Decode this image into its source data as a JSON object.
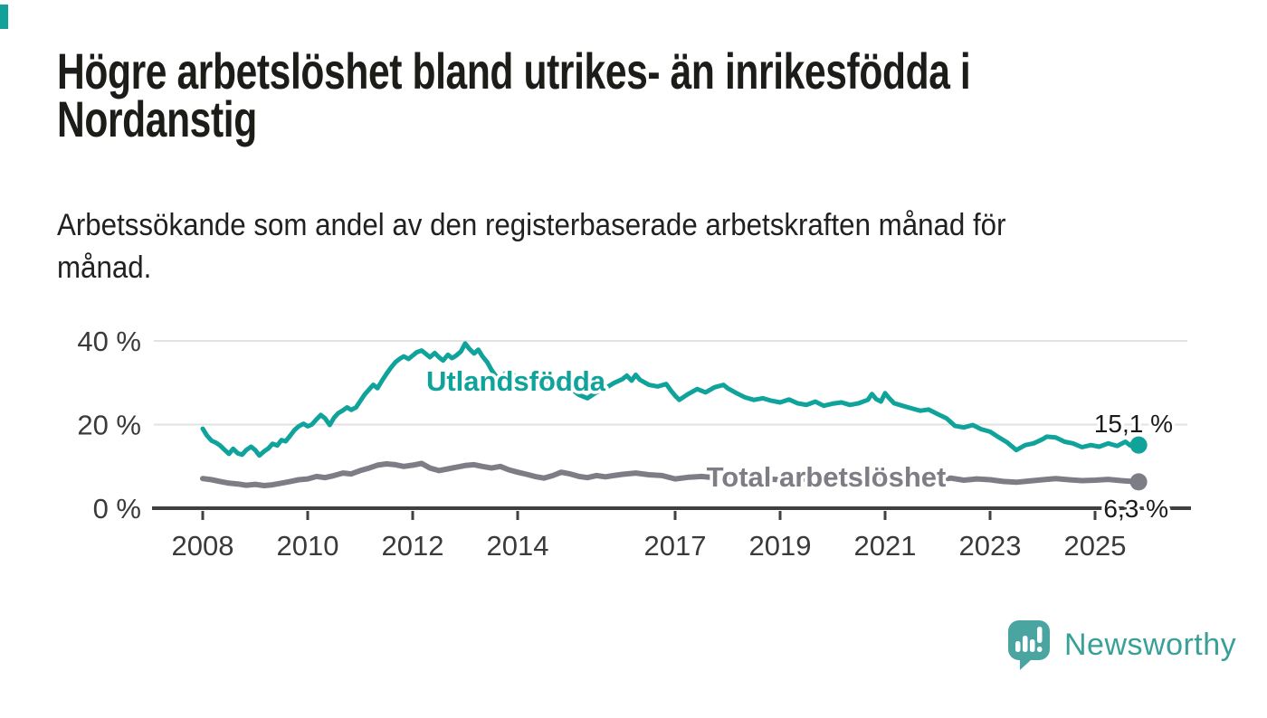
{
  "header": {
    "title": "Högre arbetslöshet bland utrikes- än inrikesfödda i\nNordanstig",
    "subtitle": "Arbetssökande som andel av den registerbaserade arbetskraften månad för\nmånad."
  },
  "footer": {
    "brand": "Newsworthy"
  },
  "colors": {
    "accent": "#12a19a",
    "utlandsfodda_line": "#10a39b",
    "total_line": "#7d7d85",
    "value_label": "#1a1a1a",
    "axis": "#404040",
    "tick_label": "#3a3a3a",
    "gridline": "#e2e2e2",
    "logo_icon": "#4aa5a0",
    "logo_text": "#38a099",
    "title_text": "#1c1c18"
  },
  "chart_data": {
    "type": "line",
    "title": "Högre arbetslöshet bland utrikes- än inrikesfödda i Nordanstig",
    "subtitle": "Arbetssökande som andel av den registerbaserade arbetskraften månad för månad.",
    "grid": "horizontal-only",
    "legend_position": "inline-labels-on-lines",
    "x_axis": {
      "ticks": [
        2008,
        2010,
        2012,
        2014,
        2017,
        2019,
        2021,
        2023,
        2025
      ],
      "tick_labels": [
        "2008",
        "2010",
        "2012",
        "2014",
        "2017",
        "2019",
        "2021",
        "2023",
        "2025"
      ],
      "range": [
        2007.9,
        2026.8
      ]
    },
    "y_axis": {
      "unit": "%",
      "ticks": [
        0,
        20,
        40
      ],
      "tick_labels": [
        "0 %",
        "20 %",
        "40 %"
      ],
      "gridlines": [
        20,
        40
      ],
      "range": [
        0,
        44
      ]
    },
    "series": [
      {
        "id": "utlandsfodda",
        "name": "Utlandsfödda",
        "color": "#10a39b",
        "end_label": "15,1 %",
        "end_value": 15.1,
        "points": [
          [
            2008.0,
            19.0
          ],
          [
            2008.08,
            17.4
          ],
          [
            2008.17,
            16.1
          ],
          [
            2008.25,
            15.7
          ],
          [
            2008.33,
            15.0
          ],
          [
            2008.42,
            13.9
          ],
          [
            2008.5,
            13.0
          ],
          [
            2008.58,
            14.2
          ],
          [
            2008.67,
            13.1
          ],
          [
            2008.75,
            12.8
          ],
          [
            2008.83,
            13.9
          ],
          [
            2008.92,
            14.7
          ],
          [
            2009.0,
            13.9
          ],
          [
            2009.08,
            12.6
          ],
          [
            2009.17,
            13.6
          ],
          [
            2009.25,
            14.3
          ],
          [
            2009.33,
            15.4
          ],
          [
            2009.42,
            15.0
          ],
          [
            2009.5,
            16.3
          ],
          [
            2009.58,
            16.0
          ],
          [
            2009.67,
            17.4
          ],
          [
            2009.75,
            18.7
          ],
          [
            2009.83,
            19.6
          ],
          [
            2009.92,
            20.2
          ],
          [
            2010.0,
            19.6
          ],
          [
            2010.08,
            20.0
          ],
          [
            2010.17,
            21.3
          ],
          [
            2010.25,
            22.3
          ],
          [
            2010.33,
            21.5
          ],
          [
            2010.42,
            19.9
          ],
          [
            2010.5,
            21.6
          ],
          [
            2010.58,
            22.7
          ],
          [
            2010.67,
            23.4
          ],
          [
            2010.75,
            24.1
          ],
          [
            2010.83,
            23.5
          ],
          [
            2010.92,
            24.1
          ],
          [
            2011.0,
            25.6
          ],
          [
            2011.08,
            27.1
          ],
          [
            2011.17,
            28.4
          ],
          [
            2011.25,
            29.5
          ],
          [
            2011.33,
            28.7
          ],
          [
            2011.42,
            30.6
          ],
          [
            2011.5,
            32.1
          ],
          [
            2011.58,
            33.5
          ],
          [
            2011.67,
            34.9
          ],
          [
            2011.75,
            35.7
          ],
          [
            2011.83,
            36.3
          ],
          [
            2011.92,
            35.7
          ],
          [
            2012.0,
            36.5
          ],
          [
            2012.08,
            37.3
          ],
          [
            2012.17,
            37.7
          ],
          [
            2012.25,
            36.9
          ],
          [
            2012.33,
            36.1
          ],
          [
            2012.42,
            37.1
          ],
          [
            2012.5,
            36.1
          ],
          [
            2012.58,
            35.3
          ],
          [
            2012.67,
            36.7
          ],
          [
            2012.75,
            35.9
          ],
          [
            2012.83,
            36.5
          ],
          [
            2012.92,
            37.5
          ],
          [
            2013.0,
            39.4
          ],
          [
            2013.08,
            38.1
          ],
          [
            2013.17,
            37.0
          ],
          [
            2013.25,
            37.9
          ],
          [
            2013.33,
            36.3
          ],
          [
            2013.42,
            34.9
          ],
          [
            2013.5,
            33.1
          ],
          [
            2013.58,
            31.7
          ],
          [
            2013.67,
            31.1
          ],
          [
            2013.75,
            32.1
          ],
          [
            2013.83,
            32.9
          ],
          [
            2013.92,
            31.9
          ],
          [
            2014.0,
            30.4
          ],
          [
            2014.17,
            28.9
          ],
          [
            2014.33,
            29.3
          ],
          [
            2014.5,
            30.1
          ],
          [
            2014.67,
            30.5
          ],
          [
            2014.83,
            29.5
          ],
          [
            2015.0,
            28.7
          ],
          [
            2015.17,
            27.1
          ],
          [
            2015.33,
            26.3
          ],
          [
            2015.5,
            27.7
          ],
          [
            2015.67,
            28.7
          ],
          [
            2015.83,
            29.9
          ],
          [
            2016.0,
            30.9
          ],
          [
            2016.08,
            31.7
          ],
          [
            2016.17,
            30.5
          ],
          [
            2016.25,
            31.9
          ],
          [
            2016.33,
            30.7
          ],
          [
            2016.5,
            29.5
          ],
          [
            2016.67,
            29.1
          ],
          [
            2016.83,
            29.7
          ],
          [
            2016.92,
            28.1
          ],
          [
            2017.0,
            26.9
          ],
          [
            2017.08,
            25.9
          ],
          [
            2017.25,
            27.3
          ],
          [
            2017.42,
            28.5
          ],
          [
            2017.58,
            27.7
          ],
          [
            2017.75,
            28.9
          ],
          [
            2017.92,
            29.5
          ],
          [
            2018.0,
            28.7
          ],
          [
            2018.17,
            27.5
          ],
          [
            2018.33,
            26.5
          ],
          [
            2018.5,
            25.9
          ],
          [
            2018.67,
            26.3
          ],
          [
            2018.83,
            25.7
          ],
          [
            2019.0,
            25.3
          ],
          [
            2019.17,
            26.0
          ],
          [
            2019.33,
            25.1
          ],
          [
            2019.5,
            24.7
          ],
          [
            2019.67,
            25.5
          ],
          [
            2019.83,
            24.5
          ],
          [
            2020.0,
            25.0
          ],
          [
            2020.17,
            25.3
          ],
          [
            2020.33,
            24.7
          ],
          [
            2020.5,
            25.1
          ],
          [
            2020.67,
            25.9
          ],
          [
            2020.75,
            27.3
          ],
          [
            2020.83,
            26.1
          ],
          [
            2020.92,
            25.5
          ],
          [
            2021.0,
            27.5
          ],
          [
            2021.08,
            26.3
          ],
          [
            2021.17,
            25.1
          ],
          [
            2021.33,
            24.5
          ],
          [
            2021.5,
            23.9
          ],
          [
            2021.67,
            23.3
          ],
          [
            2021.83,
            23.6
          ],
          [
            2022.0,
            22.5
          ],
          [
            2022.17,
            21.5
          ],
          [
            2022.33,
            19.7
          ],
          [
            2022.5,
            19.3
          ],
          [
            2022.67,
            19.9
          ],
          [
            2022.83,
            18.9
          ],
          [
            2023.0,
            18.3
          ],
          [
            2023.17,
            16.9
          ],
          [
            2023.33,
            15.7
          ],
          [
            2023.5,
            13.9
          ],
          [
            2023.67,
            15.1
          ],
          [
            2023.83,
            15.5
          ],
          [
            2024.0,
            16.5
          ],
          [
            2024.08,
            17.1
          ],
          [
            2024.25,
            16.9
          ],
          [
            2024.42,
            15.9
          ],
          [
            2024.58,
            15.5
          ],
          [
            2024.75,
            14.6
          ],
          [
            2024.92,
            15.1
          ],
          [
            2025.08,
            14.7
          ],
          [
            2025.25,
            15.5
          ],
          [
            2025.42,
            14.9
          ],
          [
            2025.58,
            15.9
          ],
          [
            2025.67,
            15.0
          ],
          [
            2025.83,
            15.1
          ]
        ]
      },
      {
        "id": "total",
        "name": "Total arbetslöshet",
        "color": "#7d7d85",
        "end_label": "6,3 %",
        "end_value": 6.3,
        "points": [
          [
            2008.0,
            7.1
          ],
          [
            2008.17,
            6.8
          ],
          [
            2008.33,
            6.4
          ],
          [
            2008.5,
            6.0
          ],
          [
            2008.67,
            5.8
          ],
          [
            2008.83,
            5.5
          ],
          [
            2009.0,
            5.7
          ],
          [
            2009.17,
            5.4
          ],
          [
            2009.33,
            5.6
          ],
          [
            2009.5,
            6.0
          ],
          [
            2009.67,
            6.4
          ],
          [
            2009.83,
            6.8
          ],
          [
            2010.0,
            7.0
          ],
          [
            2010.17,
            7.6
          ],
          [
            2010.33,
            7.3
          ],
          [
            2010.5,
            7.8
          ],
          [
            2010.67,
            8.4
          ],
          [
            2010.83,
            8.2
          ],
          [
            2011.0,
            9.0
          ],
          [
            2011.17,
            9.6
          ],
          [
            2011.33,
            10.3
          ],
          [
            2011.5,
            10.6
          ],
          [
            2011.67,
            10.4
          ],
          [
            2011.83,
            10.0
          ],
          [
            2012.0,
            10.3
          ],
          [
            2012.17,
            10.7
          ],
          [
            2012.33,
            9.6
          ],
          [
            2012.5,
            9.0
          ],
          [
            2012.67,
            9.4
          ],
          [
            2012.83,
            9.8
          ],
          [
            2013.0,
            10.2
          ],
          [
            2013.17,
            10.4
          ],
          [
            2013.33,
            10.0
          ],
          [
            2013.5,
            9.6
          ],
          [
            2013.67,
            10.0
          ],
          [
            2013.83,
            9.2
          ],
          [
            2014.0,
            8.6
          ],
          [
            2014.17,
            8.1
          ],
          [
            2014.33,
            7.6
          ],
          [
            2014.5,
            7.2
          ],
          [
            2014.67,
            7.8
          ],
          [
            2014.83,
            8.6
          ],
          [
            2015.0,
            8.2
          ],
          [
            2015.17,
            7.6
          ],
          [
            2015.33,
            7.3
          ],
          [
            2015.5,
            7.8
          ],
          [
            2015.67,
            7.5
          ],
          [
            2015.83,
            7.8
          ],
          [
            2016.0,
            8.1
          ],
          [
            2016.25,
            8.4
          ],
          [
            2016.5,
            8.0
          ],
          [
            2016.75,
            7.8
          ],
          [
            2017.0,
            7.0
          ],
          [
            2017.25,
            7.4
          ],
          [
            2017.5,
            7.6
          ],
          [
            2017.75,
            7.3
          ],
          [
            2018.0,
            7.5
          ],
          [
            2018.25,
            7.7
          ],
          [
            2018.5,
            7.3
          ],
          [
            2018.75,
            7.0
          ],
          [
            2019.0,
            6.8
          ],
          [
            2019.25,
            7.2
          ],
          [
            2019.5,
            6.9
          ],
          [
            2019.75,
            6.7
          ],
          [
            2020.0,
            7.0
          ],
          [
            2020.25,
            7.2
          ],
          [
            2020.5,
            6.9
          ],
          [
            2020.75,
            7.1
          ],
          [
            2021.0,
            6.8
          ],
          [
            2021.25,
            6.6
          ],
          [
            2021.5,
            6.9
          ],
          [
            2021.75,
            6.5
          ],
          [
            2022.0,
            6.7
          ],
          [
            2022.25,
            7.2
          ],
          [
            2022.5,
            6.7
          ],
          [
            2022.75,
            7.0
          ],
          [
            2023.0,
            6.8
          ],
          [
            2023.25,
            6.4
          ],
          [
            2023.5,
            6.2
          ],
          [
            2023.75,
            6.5
          ],
          [
            2024.0,
            6.8
          ],
          [
            2024.25,
            7.1
          ],
          [
            2024.5,
            6.8
          ],
          [
            2024.75,
            6.6
          ],
          [
            2025.0,
            6.7
          ],
          [
            2025.25,
            6.9
          ],
          [
            2025.5,
            6.6
          ],
          [
            2025.83,
            6.3
          ]
        ]
      }
    ]
  }
}
